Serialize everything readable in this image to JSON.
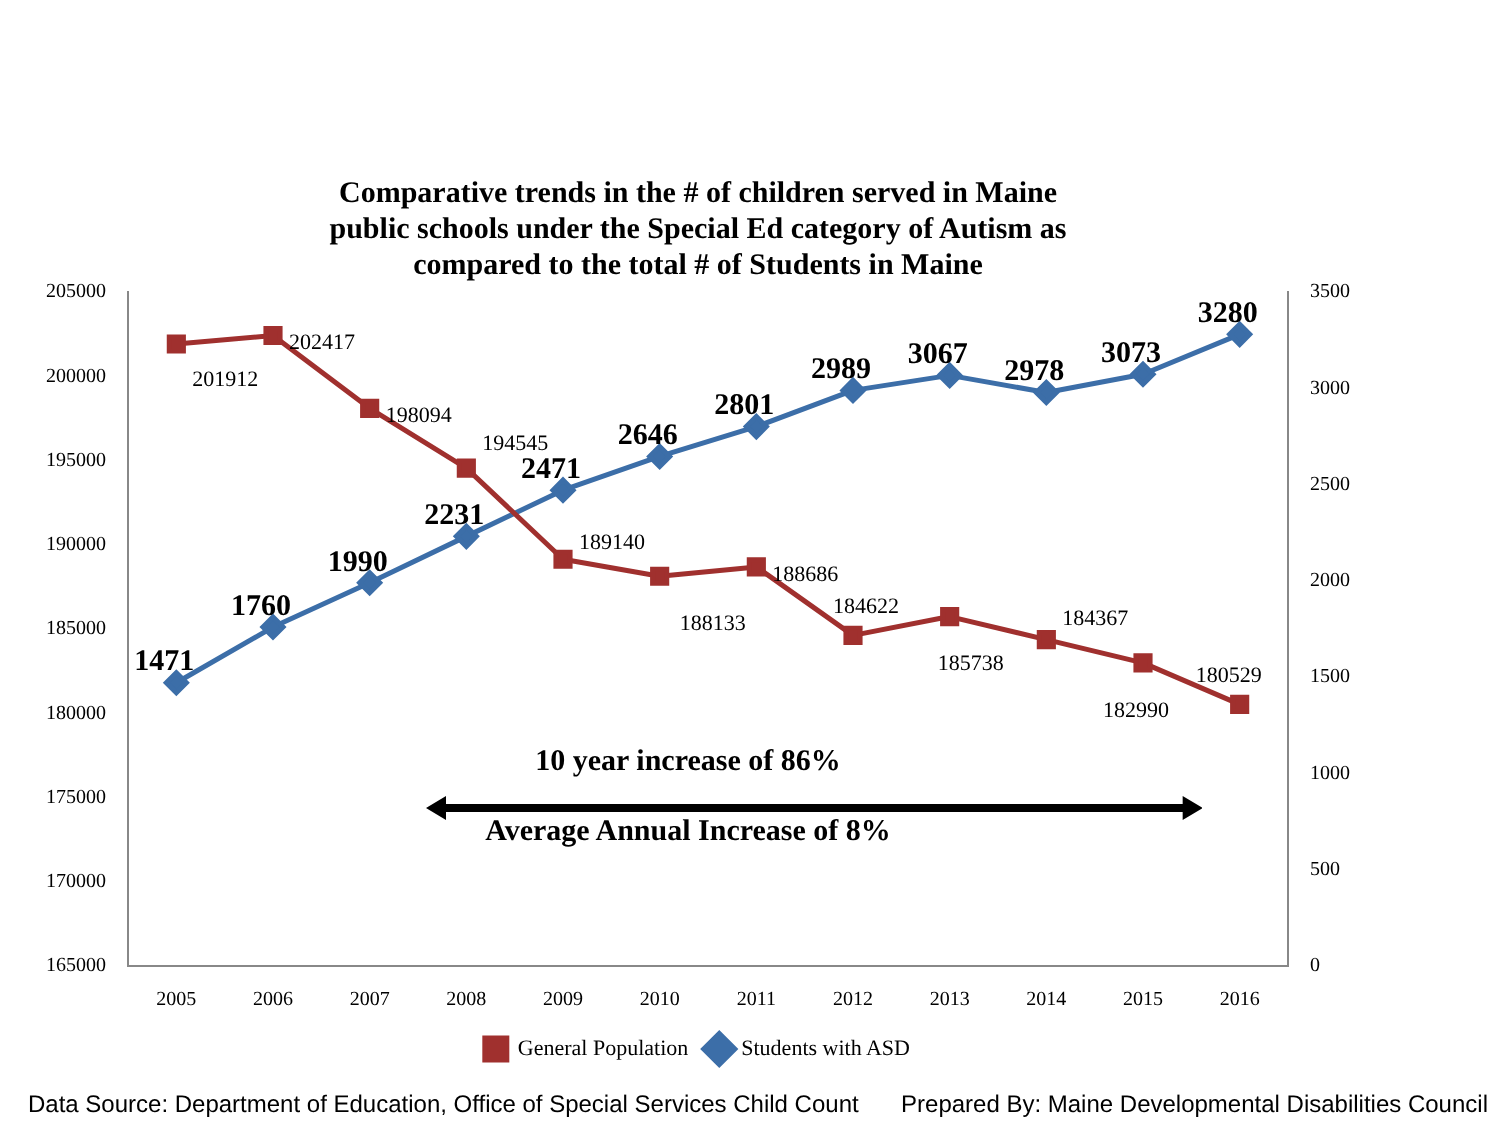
{
  "chart_data": {
    "type": "line",
    "title": "Comparative trends in the # of children served in Maine public schools under the Special Ed category of Autism as compared to the total # of Students in Maine",
    "categories": [
      "2005",
      "2006",
      "2007",
      "2008",
      "2009",
      "2010",
      "2011",
      "2012",
      "2013",
      "2014",
      "2015",
      "2016"
    ],
    "series": [
      {
        "name": "General Population",
        "color": "#a0302e",
        "marker": "square",
        "values": [
          201912,
          202417,
          198094,
          194545,
          189140,
          188133,
          188686,
          184622,
          185738,
          184367,
          182990,
          180529
        ]
      },
      {
        "name": "Students with ASD",
        "color": "#3c6ea8",
        "marker": "diamond",
        "axis": "y2",
        "values": [
          1471,
          1760,
          1990,
          2231,
          2471,
          2646,
          2801,
          2989,
          3067,
          2978,
          3073,
          3280
        ]
      }
    ],
    "ylim": [
      165000,
      205000
    ],
    "yticks": [
      165000,
      170000,
      175000,
      180000,
      185000,
      190000,
      195000,
      200000,
      205000
    ],
    "y2lim": [
      0,
      3500
    ],
    "y2ticks": [
      0,
      500,
      1000,
      1500,
      2000,
      2500,
      3000,
      3500
    ],
    "grid": false,
    "legend": "bottom",
    "data_labels": true,
    "annotations": [
      "10 year increase of 86%",
      "Average Annual Increase of 8%",
      "Data Source:  Department of Education, Office of Special Services Child Count",
      "Prepared By:  Maine Developmental Disabilities Council"
    ]
  }
}
